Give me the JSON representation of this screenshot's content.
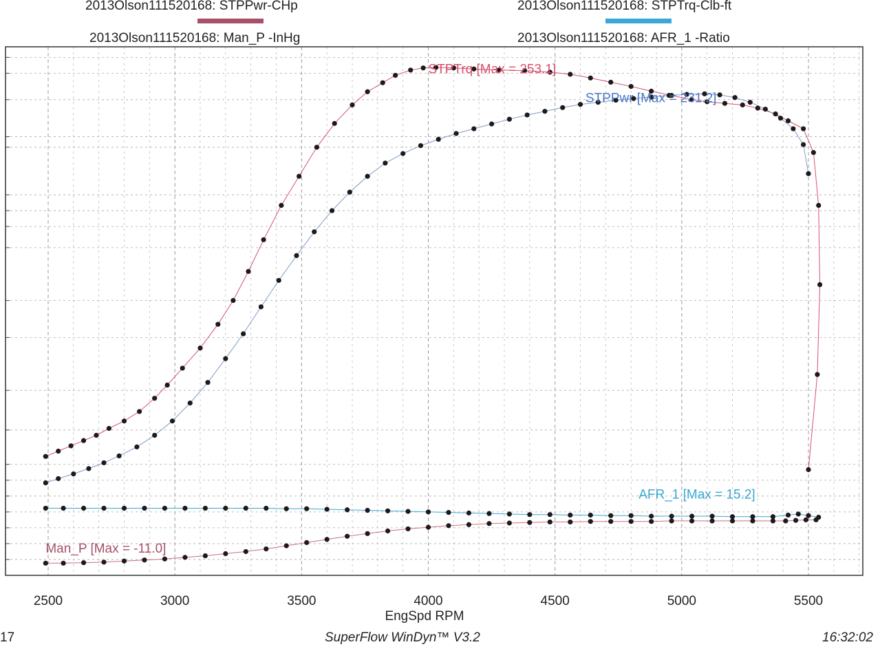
{
  "legend": [
    {
      "label": "2013Olson111520168: STPPwr-CHp",
      "color": "#a85068"
    },
    {
      "label": "2013Olson111520168: Man_P -InHg",
      "color": ""
    },
    {
      "label": "2013Olson111520168: STPTrq-Clb-ft",
      "color": "#3aa7d6"
    },
    {
      "label": "2013Olson111520168: AFR_1 -Ratio",
      "color": ""
    }
  ],
  "footer": {
    "left": "17",
    "center": "SuperFlow WinDyn™ V3.2",
    "right": "16:32:02"
  },
  "chart_data": {
    "type": "scatter",
    "xlabel": "EngSpd RPM",
    "x_ticks": [
      2500,
      3000,
      3500,
      4000,
      4500,
      5000,
      5500
    ],
    "xlim": [
      2480,
      5560
    ],
    "ylim": [
      0,
      100
    ],
    "grid": true,
    "annotations": [
      {
        "text": "STPTrq [Max = 253.1]",
        "x": 4000,
        "y": 95,
        "color": "#d9506e"
      },
      {
        "text": "STPPwr [Max = 231.2]",
        "x": 4620,
        "y": 89.5,
        "color": "#4a78c8"
      },
      {
        "text": "AFR_1  [Max = 15.2]",
        "x": 4830,
        "y": 14.5,
        "color": "#3aa7d6"
      },
      {
        "text": "Man_P  [Max = -11.0]",
        "x": 2490,
        "y": 4.3,
        "color": "#a85068"
      }
    ],
    "series": [
      {
        "line_color": "#d9506e",
        "x": [
          2490,
          2540,
          2590,
          2640,
          2690,
          2740,
          2800,
          2860,
          2920,
          2970,
          3030,
          3100,
          3170,
          3230,
          3290,
          3350,
          3420,
          3490,
          3560,
          3630,
          3700,
          3760,
          3820,
          3870,
          3930,
          3980,
          4030,
          4100,
          4180,
          4280,
          4380,
          4480,
          4560,
          4640,
          4720,
          4800,
          4880,
          4960,
          5040,
          5100,
          5170,
          5240,
          5300,
          5370,
          5420,
          5480,
          5520,
          5540,
          5545,
          5535,
          5500
        ],
        "y": [
          22.5,
          23.5,
          24.5,
          25.5,
          26.5,
          27.8,
          29.2,
          31,
          33.5,
          36,
          39.2,
          43,
          47.5,
          52,
          57.5,
          63.5,
          70,
          75.5,
          81,
          85.5,
          89,
          91.5,
          93.2,
          94.6,
          95.6,
          96,
          96.1,
          96,
          95.8,
          95.6,
          95.5,
          95.2,
          94.8,
          94.1,
          93.3,
          92.5,
          91.6,
          90.8,
          90,
          89.6,
          89.3,
          89,
          88.4,
          87.3,
          86,
          84.5,
          80,
          70,
          55,
          38,
          20
        ]
      },
      {
        "line_color": "#7b9ac8",
        "x": [
          2490,
          2540,
          2600,
          2660,
          2720,
          2780,
          2850,
          2920,
          2990,
          3060,
          3130,
          3200,
          3270,
          3340,
          3410,
          3480,
          3550,
          3620,
          3690,
          3760,
          3830,
          3900,
          3970,
          4040,
          4110,
          4180,
          4250,
          4320,
          4390,
          4460,
          4530,
          4600,
          4670,
          4740,
          4810,
          4880,
          4950,
          5020,
          5090,
          5150,
          5210,
          5270,
          5330,
          5390,
          5440,
          5480,
          5500
        ],
        "y": [
          17.5,
          18.3,
          19.2,
          20.2,
          21.3,
          22.6,
          24.3,
          26.5,
          29.2,
          32.6,
          36.5,
          41,
          45.7,
          50.8,
          55.8,
          60.5,
          65,
          69,
          72.5,
          75.5,
          78,
          79.8,
          81.3,
          82.5,
          83.6,
          84.5,
          85.4,
          86.3,
          87.1,
          87.8,
          88.5,
          89.1,
          89.5,
          89.9,
          90.2,
          90.5,
          90.8,
          91,
          91.1,
          90.9,
          90.4,
          89.5,
          88.2,
          86.5,
          84.5,
          81.5,
          76
        ]
      },
      {
        "line_color": "#3aa7d6",
        "x": [
          2490,
          2560,
          2640,
          2720,
          2800,
          2880,
          2960,
          3040,
          3120,
          3200,
          3280,
          3360,
          3440,
          3520,
          3600,
          3680,
          3760,
          3840,
          3920,
          4000,
          4080,
          4160,
          4240,
          4320,
          4400,
          4480,
          4560,
          4640,
          4720,
          4800,
          4880,
          4960,
          5040,
          5120,
          5200,
          5280,
          5360,
          5420,
          5460,
          5500,
          5540
        ],
        "y": [
          12.7,
          12.7,
          12.7,
          12.7,
          12.7,
          12.7,
          12.7,
          12.7,
          12.7,
          12.7,
          12.7,
          12.7,
          12.6,
          12.6,
          12.5,
          12.4,
          12.3,
          12.2,
          12.1,
          12.0,
          11.9,
          11.8,
          11.7,
          11.6,
          11.5,
          11.5,
          11.4,
          11.4,
          11.3,
          11.3,
          11.2,
          11.2,
          11.2,
          11.2,
          11.1,
          11.1,
          11.1,
          11.4,
          11.6,
          11.3,
          11.0
        ]
      },
      {
        "line_color": "#c86e82",
        "x": [
          2490,
          2560,
          2640,
          2720,
          2800,
          2880,
          2960,
          3040,
          3120,
          3200,
          3280,
          3360,
          3440,
          3520,
          3600,
          3680,
          3760,
          3840,
          3920,
          4000,
          4080,
          4160,
          4240,
          4320,
          4400,
          4480,
          4560,
          4640,
          4720,
          4800,
          4880,
          4960,
          5040,
          5120,
          5200,
          5280,
          5360,
          5410,
          5450,
          5490,
          5530
        ],
        "y": [
          2.3,
          2.3,
          2.4,
          2.5,
          2.7,
          2.9,
          3.1,
          3.4,
          3.7,
          4.1,
          4.5,
          5.0,
          5.6,
          6.2,
          6.8,
          7.4,
          7.9,
          8.4,
          8.8,
          9.1,
          9.4,
          9.6,
          9.8,
          9.9,
          10.0,
          10.1,
          10.1,
          10.2,
          10.2,
          10.2,
          10.2,
          10.3,
          10.3,
          10.3,
          10.3,
          10.3,
          10.3,
          10.3,
          10.4,
          10.5,
          10.5
        ]
      }
    ]
  }
}
